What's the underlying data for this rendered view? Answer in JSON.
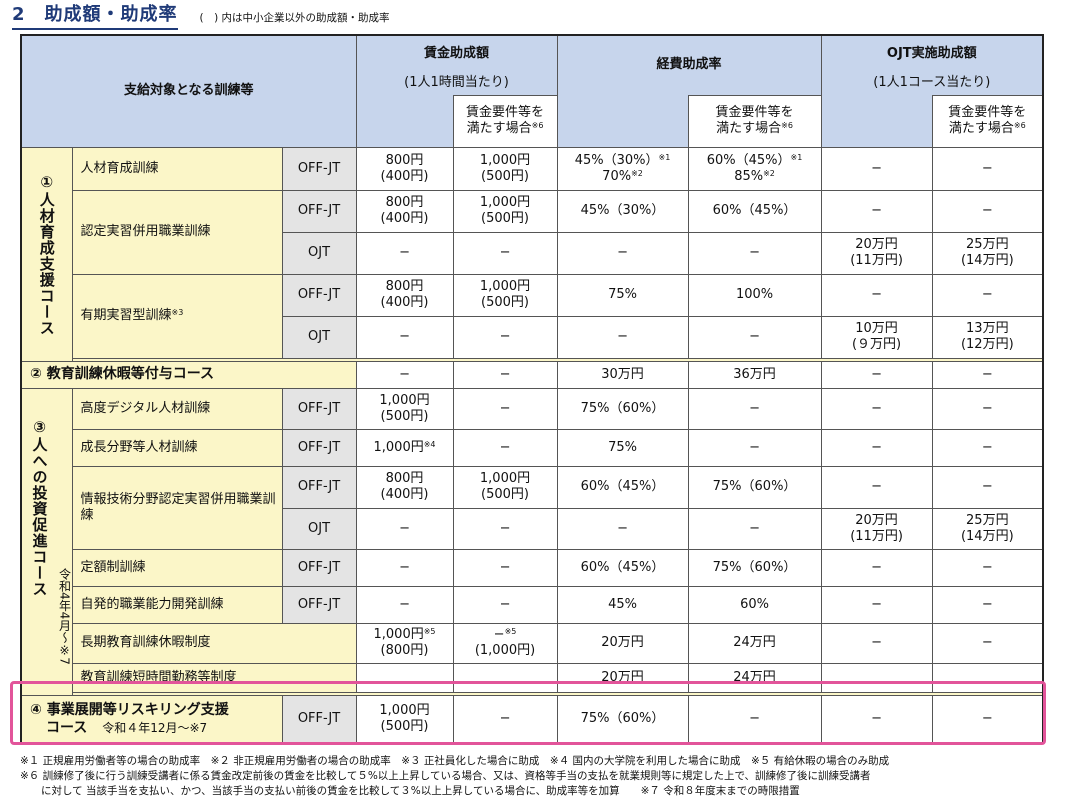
{
  "title": "2　助成額・助成率",
  "title_note": "(　) 内は中小企業以外の助成額・助成率",
  "headers": {
    "target": "支給対象となる訓練等",
    "wage": "賃金助成額",
    "wage_sub": "(1人1時間当たり)",
    "expense": "経費助成率",
    "ojt": "OJT実施助成額",
    "ojt_sub": "(1人1コース当たり)",
    "req_a": "賃金要件等を",
    "req_b": "満たす場合",
    "req_mark": "※6"
  },
  "groups": {
    "g1": "①人材育成支援コース",
    "g2": "② 教育訓練休暇等付与コース",
    "g3": "③人への投資促進コース",
    "g3_sub": "令和4年4月〜※7",
    "g4_a": "④ 事業展開等リスキリング支援",
    "g4_b": "コース",
    "g4_sub": "令和４年12月〜※7"
  },
  "dash": "−",
  "labels": {
    "offjt": "OFF-JT",
    "ojt": "OJT",
    "jinzai": "人材育成訓練",
    "nintei": "認定実習併用職業訓練",
    "yuki": "有期実習型訓練",
    "yuki_mark": "※3",
    "kodo": "高度デジタル人材訓練",
    "seicho": "成長分野等人材訓練",
    "joho": "情報技術分野認定実習併用職業訓練",
    "teigaku": "定額制訓練",
    "jihatsu": "自発的職業能力開発訓練",
    "choki": "長期教育訓練休暇制度",
    "tanjikan": "教育訓練短時間勤務等制度"
  },
  "values": {
    "w800": "800円",
    "w400": "(400円)",
    "w1000": "1,000円",
    "w500": "(500円)",
    "w800p": "(800円)",
    "w1000p": "(1,000円)",
    "m4": "※4",
    "m5": "※5",
    "e45_30": "45%（30%）",
    "e60_45": "60%（45%）",
    "e70": "70%",
    "e85": "85%",
    "m1": "※1",
    "m2": "※2",
    "e75": "75%",
    "e100": "100%",
    "e75_60": "75%（60%）",
    "e45": "45%",
    "e60": "60%",
    "y30": "30万円",
    "y36": "36万円",
    "y20": "20万円",
    "y24": "24万円",
    "o20": "20万円",
    "o11": "(11万円)",
    "o25": "25万円",
    "o14": "(14万円)",
    "o10": "10万円",
    "o9": "(９万円)",
    "o13": "13万円",
    "o12": "(12万円)"
  },
  "footnotes": [
    "※１ 正規雇用労働者等の場合の助成率　※２ 非正規雇用労働者の場合の助成率　※３ 正社員化した場合に助成　※４ 国内の大学院を利用した場合に助成　※５ 有給休暇の場合のみ助成",
    "※６ 訓練修了後に行う訓練受講者に係る賃金改定前後の賃金を比較して５%以上上昇している場合、又は、資格等手当の支払を就業規則等に規定した上で、訓練修了後に訓練受講者",
    "　　に対して 当該手当を支払い、かつ、当該手当の支払い前後の賃金を比較して３%以上上昇している場合に、助成率等を加算　　※７ 令和８年度末までの時限措置"
  ]
}
